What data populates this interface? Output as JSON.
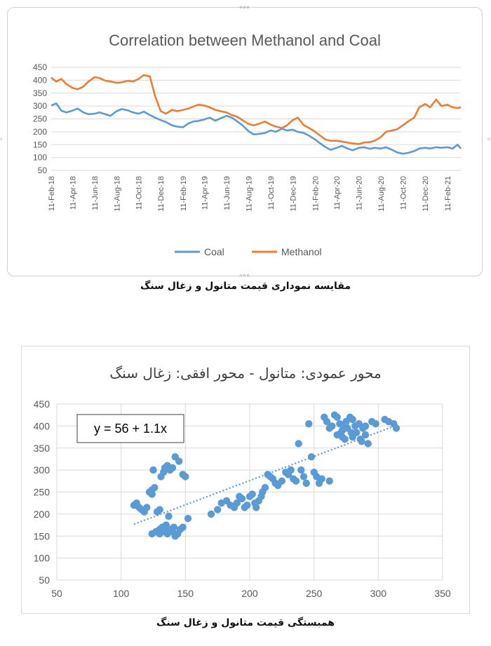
{
  "caption_top": "مقایسه نموداری قیمت متانول و زغال سنگ",
  "caption_bottom": "همبستگی قیمت متانول و زغال سنگ",
  "colors": {
    "coal": "#5b9bd5",
    "methanol": "#ed7d31",
    "scatter": "#5b9bd5",
    "grid": "#d9d9d9",
    "text": "#595959"
  },
  "chart_data": [
    {
      "type": "line",
      "title": "Correlation between Methanol and Coal",
      "xlabel": "",
      "ylabel": "",
      "ylim": [
        50,
        450
      ],
      "yticks": [
        50,
        100,
        150,
        200,
        250,
        300,
        350,
        400,
        450
      ],
      "grid": true,
      "legend": "bottom",
      "x_tick_labels": [
        "11-Feb-18",
        "11-Apr-18",
        "11-Jun-18",
        "11-Aug-18",
        "11-Oct-18",
        "11-Dec-18",
        "11-Feb-19",
        "11-Apr-19",
        "11-Jun-19",
        "11-Aug-19",
        "11-Oct-19",
        "11-Dec-19",
        "11-Feb-20",
        "11-Apr-20",
        "11-Jun-20",
        "11-Aug-20",
        "11-Oct-20",
        "11-Dec-20",
        "11-Feb-21"
      ],
      "x_range": [
        "11-Feb-18",
        "20-Mar-21"
      ],
      "series": [
        {
          "name": "Coal",
          "color": "#5b9bd5",
          "points": [
            [
              "11-Feb-18",
              302
            ],
            [
              "25-Feb-18",
              310
            ],
            [
              "11-Mar-18",
              282
            ],
            [
              "25-Mar-18",
              275
            ],
            [
              "11-Apr-18",
              282
            ],
            [
              "25-Apr-18",
              290
            ],
            [
              "11-May-18",
              275
            ],
            [
              "25-May-18",
              268
            ],
            [
              "11-Jun-18",
              270
            ],
            [
              "25-Jun-18",
              275
            ],
            [
              "11-Jul-18",
              268
            ],
            [
              "25-Jul-18",
              262
            ],
            [
              "11-Aug-18",
              280
            ],
            [
              "25-Aug-18",
              288
            ],
            [
              "11-Sep-18",
              283
            ],
            [
              "25-Sep-18",
              275
            ],
            [
              "11-Oct-18",
              270
            ],
            [
              "25-Oct-18",
              278
            ],
            [
              "11-Nov-18",
              265
            ],
            [
              "25-Nov-18",
              255
            ],
            [
              "11-Dec-18",
              245
            ],
            [
              "25-Dec-18",
              238
            ],
            [
              "11-Jan-19",
              225
            ],
            [
              "25-Jan-19",
              220
            ],
            [
              "11-Feb-19",
              218
            ],
            [
              "25-Feb-19",
              232
            ],
            [
              "11-Mar-19",
              240
            ],
            [
              "25-Mar-19",
              242
            ],
            [
              "11-Apr-19",
              248
            ],
            [
              "25-Apr-19",
              255
            ],
            [
              "11-May-19",
              243
            ],
            [
              "25-May-19",
              252
            ],
            [
              "11-Jun-19",
              262
            ],
            [
              "25-Jun-19",
              255
            ],
            [
              "11-Jul-19",
              240
            ],
            [
              "25-Jul-19",
              225
            ],
            [
              "11-Aug-19",
              202
            ],
            [
              "25-Aug-19",
              190
            ],
            [
              "11-Sep-19",
              192
            ],
            [
              "25-Sep-19",
              195
            ],
            [
              "11-Oct-19",
              205
            ],
            [
              "25-Oct-19",
              200
            ],
            [
              "11-Nov-19",
              212
            ],
            [
              "25-Nov-19",
              205
            ],
            [
              "11-Dec-19",
              208
            ],
            [
              "25-Dec-19",
              200
            ],
            [
              "11-Jan-20",
              195
            ],
            [
              "25-Jan-20",
              185
            ],
            [
              "11-Feb-20",
              170
            ],
            [
              "25-Feb-20",
              155
            ],
            [
              "11-Mar-20",
              140
            ],
            [
              "25-Mar-20",
              130
            ],
            [
              "11-Apr-20",
              138
            ],
            [
              "25-Apr-20",
              145
            ],
            [
              "11-May-20",
              135
            ],
            [
              "25-May-20",
              128
            ],
            [
              "11-Jun-20",
              138
            ],
            [
              "25-Jun-20",
              140
            ],
            [
              "11-Jul-20",
              134
            ],
            [
              "25-Jul-20",
              138
            ],
            [
              "11-Aug-20",
              135
            ],
            [
              "25-Aug-20",
              140
            ],
            [
              "11-Sep-20",
              130
            ],
            [
              "25-Sep-20",
              120
            ],
            [
              "11-Oct-20",
              115
            ],
            [
              "25-Oct-20",
              118
            ],
            [
              "11-Nov-20",
              125
            ],
            [
              "25-Nov-20",
              135
            ],
            [
              "11-Dec-20",
              138
            ],
            [
              "25-Dec-20",
              135
            ],
            [
              "11-Jan-21",
              140
            ],
            [
              "25-Jan-21",
              138
            ],
            [
              "11-Feb-21",
              140
            ],
            [
              "25-Feb-21",
              135
            ],
            [
              "11-Mar-21",
              150
            ],
            [
              "20-Mar-21",
              135
            ]
          ]
        },
        {
          "name": "Methanol",
          "color": "#ed7d31",
          "points": [
            [
              "11-Feb-18",
              410
            ],
            [
              "25-Feb-18",
              395
            ],
            [
              "11-Mar-18",
              405
            ],
            [
              "25-Mar-18",
              385
            ],
            [
              "11-Apr-18",
              370
            ],
            [
              "25-Apr-18",
              365
            ],
            [
              "11-May-18",
              375
            ],
            [
              "25-May-18",
              395
            ],
            [
              "11-Jun-18",
              412
            ],
            [
              "25-Jun-18",
              408
            ],
            [
              "11-Jul-18",
              398
            ],
            [
              "25-Jul-18",
              395
            ],
            [
              "11-Aug-18",
              390
            ],
            [
              "25-Aug-18",
              392
            ],
            [
              "11-Sep-18",
              398
            ],
            [
              "25-Sep-18",
              395
            ],
            [
              "11-Oct-18",
              405
            ],
            [
              "25-Oct-18",
              420
            ],
            [
              "11-Nov-18",
              415
            ],
            [
              "25-Nov-18",
              340
            ],
            [
              "11-Dec-18",
              280
            ],
            [
              "25-Dec-18",
              270
            ],
            [
              "11-Jan-19",
              285
            ],
            [
              "25-Jan-19",
              280
            ],
            [
              "11-Feb-19",
              285
            ],
            [
              "25-Feb-19",
              290
            ],
            [
              "11-Mar-19",
              298
            ],
            [
              "25-Mar-19",
              305
            ],
            [
              "11-Apr-19",
              302
            ],
            [
              "25-Apr-19",
              295
            ],
            [
              "11-May-19",
              285
            ],
            [
              "25-May-19",
              280
            ],
            [
              "11-Jun-19",
              275
            ],
            [
              "25-Jun-19",
              265
            ],
            [
              "11-Jul-19",
              258
            ],
            [
              "25-Jul-19",
              245
            ],
            [
              "11-Aug-19",
              230
            ],
            [
              "25-Aug-19",
              225
            ],
            [
              "11-Sep-19",
              232
            ],
            [
              "25-Sep-19",
              240
            ],
            [
              "11-Oct-19",
              228
            ],
            [
              "25-Oct-19",
              220
            ],
            [
              "11-Nov-19",
              215
            ],
            [
              "25-Nov-19",
              225
            ],
            [
              "11-Dec-19",
              245
            ],
            [
              "25-Dec-19",
              255
            ],
            [
              "11-Jan-20",
              225
            ],
            [
              "25-Jan-20",
              215
            ],
            [
              "11-Feb-20",
              200
            ],
            [
              "25-Feb-20",
              185
            ],
            [
              "11-Mar-20",
              170
            ],
            [
              "25-Mar-20",
              165
            ],
            [
              "11-Apr-20",
              165
            ],
            [
              "25-Apr-20",
              162
            ],
            [
              "11-May-20",
              158
            ],
            [
              "25-May-20",
              155
            ],
            [
              "11-Jun-20",
              152
            ],
            [
              "25-Jun-20",
              158
            ],
            [
              "11-Jul-20",
              160
            ],
            [
              "25-Jul-20",
              165
            ],
            [
              "11-Aug-20",
              180
            ],
            [
              "25-Aug-20",
              200
            ],
            [
              "11-Sep-20",
              205
            ],
            [
              "25-Sep-20",
              210
            ],
            [
              "11-Oct-20",
              225
            ],
            [
              "25-Oct-20",
              240
            ],
            [
              "11-Nov-20",
              255
            ],
            [
              "25-Nov-20",
              295
            ],
            [
              "11-Dec-20",
              308
            ],
            [
              "25-Dec-20",
              295
            ],
            [
              "11-Jan-21",
              325
            ],
            [
              "25-Jan-21",
              300
            ],
            [
              "11-Feb-21",
              305
            ],
            [
              "25-Feb-21",
              295
            ],
            [
              "11-Mar-21",
              292
            ],
            [
              "20-Mar-21",
              295
            ]
          ]
        }
      ]
    },
    {
      "type": "scatter",
      "title": "محور عمودی: متانول - محور افقی: زغال سنگ",
      "xlabel": "",
      "ylabel": "",
      "xlim": [
        50,
        350
      ],
      "ylim": [
        50,
        450
      ],
      "xticks": [
        50,
        100,
        150,
        200,
        250,
        300,
        350
      ],
      "yticks": [
        50,
        100,
        150,
        200,
        250,
        300,
        350,
        400,
        450
      ],
      "grid": true,
      "trendline": {
        "intercept": 56,
        "slope": 1.1,
        "x_range": [
          110,
          315
        ],
        "style": "dotted"
      },
      "equation_label": "y = 56 + 1.1x",
      "points": [
        [
          110,
          220
        ],
        [
          112,
          225
        ],
        [
          114,
          215
        ],
        [
          116,
          210
        ],
        [
          118,
          205
        ],
        [
          120,
          215
        ],
        [
          122,
          250
        ],
        [
          124,
          255
        ],
        [
          126,
          260
        ],
        [
          124,
          245
        ],
        [
          125,
          300
        ],
        [
          128,
          205
        ],
        [
          130,
          210
        ],
        [
          131,
          285
        ],
        [
          133,
          295
        ],
        [
          134,
          305
        ],
        [
          136,
          310
        ],
        [
          138,
          300
        ],
        [
          140,
          305
        ],
        [
          142,
          330
        ],
        [
          145,
          320
        ],
        [
          148,
          290
        ],
        [
          150,
          285
        ],
        [
          124,
          155
        ],
        [
          127,
          160
        ],
        [
          130,
          165
        ],
        [
          132,
          170
        ],
        [
          134,
          160
        ],
        [
          136,
          155
        ],
        [
          138,
          165
        ],
        [
          140,
          160
        ],
        [
          142,
          150
        ],
        [
          144,
          155
        ],
        [
          146,
          165
        ],
        [
          148,
          170
        ],
        [
          137,
          195
        ],
        [
          152,
          190
        ],
        [
          130,
          155
        ],
        [
          135,
          175
        ],
        [
          141,
          170
        ],
        [
          170,
          200
        ],
        [
          175,
          210
        ],
        [
          178,
          225
        ],
        [
          182,
          230
        ],
        [
          185,
          220
        ],
        [
          188,
          215
        ],
        [
          190,
          225
        ],
        [
          192,
          240
        ],
        [
          194,
          235
        ],
        [
          196,
          215
        ],
        [
          198,
          220
        ],
        [
          200,
          240
        ],
        [
          202,
          245
        ],
        [
          204,
          225
        ],
        [
          205,
          215
        ],
        [
          207,
          230
        ],
        [
          209,
          240
        ],
        [
          210,
          250
        ],
        [
          212,
          260
        ],
        [
          214,
          290
        ],
        [
          216,
          285
        ],
        [
          218,
          280
        ],
        [
          220,
          270
        ],
        [
          222,
          265
        ],
        [
          225,
          275
        ],
        [
          228,
          295
        ],
        [
          230,
          290
        ],
        [
          232,
          300
        ],
        [
          234,
          280
        ],
        [
          236,
          275
        ],
        [
          238,
          360
        ],
        [
          240,
          300
        ],
        [
          242,
          285
        ],
        [
          244,
          270
        ],
        [
          246,
          405
        ],
        [
          248,
          330
        ],
        [
          250,
          295
        ],
        [
          252,
          285
        ],
        [
          254,
          270
        ],
        [
          256,
          280
        ],
        [
          258,
          420
        ],
        [
          260,
          410
        ],
        [
          262,
          395
        ],
        [
          264,
          400
        ],
        [
          266,
          425
        ],
        [
          268,
          420
        ],
        [
          270,
          405
        ],
        [
          271,
          385
        ],
        [
          272,
          375
        ],
        [
          274,
          370
        ],
        [
          275,
          410
        ],
        [
          276,
          395
        ],
        [
          278,
          420
        ],
        [
          280,
          415
        ],
        [
          282,
          400
        ],
        [
          283,
          385
        ],
        [
          285,
          405
        ],
        [
          286,
          370
        ],
        [
          288,
          395
        ],
        [
          290,
          400
        ],
        [
          292,
          360
        ],
        [
          295,
          410
        ],
        [
          298,
          405
        ],
        [
          305,
          415
        ],
        [
          308,
          410
        ],
        [
          312,
          405
        ],
        [
          314,
          395
        ],
        [
          268,
          380
        ],
        [
          272,
          390
        ],
        [
          280,
          375
        ],
        [
          262,
          275
        ],
        [
          287,
          365
        ],
        [
          290,
          380
        ],
        [
          274,
          400
        ],
        [
          279,
          385
        ]
      ]
    }
  ]
}
